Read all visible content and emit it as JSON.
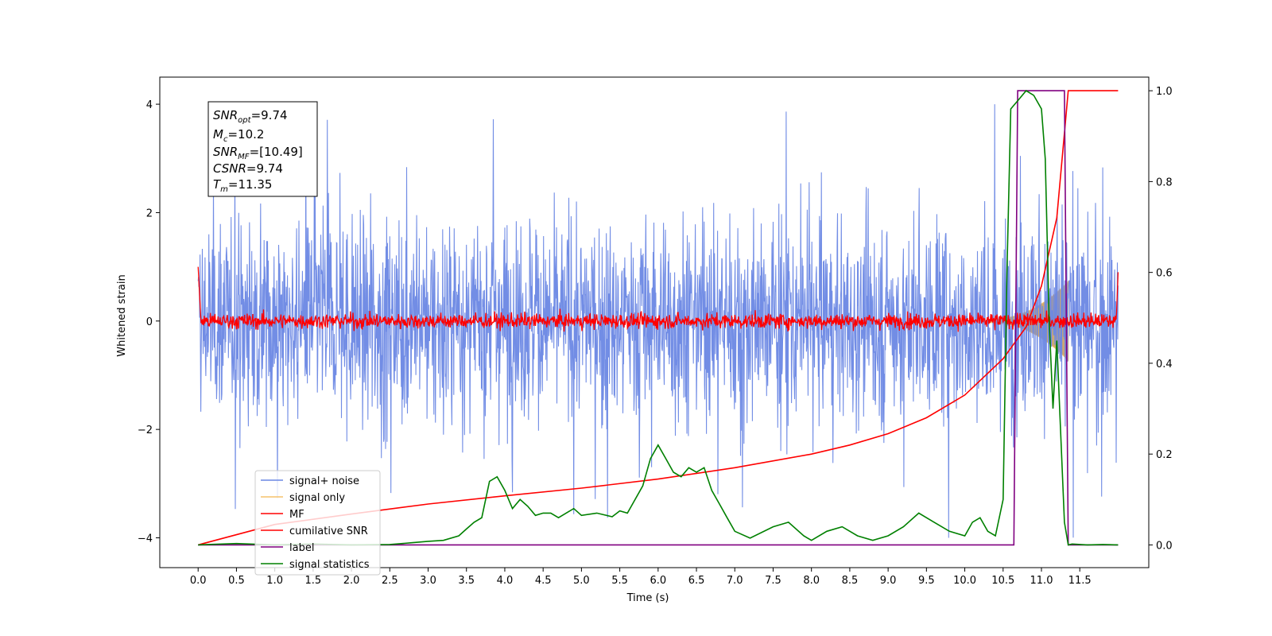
{
  "chart_data": {
    "type": "line",
    "xlabel": "Time (s)",
    "ylabel": "Whitened strain",
    "xlim": [
      -0.5,
      12.4
    ],
    "ylim": [
      -4.55,
      4.5
    ],
    "y2lim": [
      -0.05,
      1.03
    ],
    "xticks": [
      "0.0",
      "0.5",
      "1.0",
      "1.5",
      "2.0",
      "2.5",
      "3.0",
      "3.5",
      "4.0",
      "4.5",
      "5.0",
      "5.5",
      "6.0",
      "6.5",
      "7.0",
      "7.5",
      "8.0",
      "8.5",
      "9.0",
      "9.5",
      "10.0",
      "10.5",
      "11.0",
      "11.5"
    ],
    "yticks": [
      "4",
      "2",
      "0",
      "−2",
      "−4"
    ],
    "y2ticks": [
      "1.0",
      "0.8",
      "0.6",
      "0.4",
      "0.2",
      "0.0"
    ],
    "legend_placement": "lower-left",
    "grid": false,
    "infobox": {
      "snr_opt": {
        "base": "SNR",
        "sub": "opt",
        "value": "=9.74"
      },
      "mc": {
        "base": "M",
        "sub": "c",
        "value": "=10.2"
      },
      "snr_mf": {
        "base": "SNR",
        "sub": "MF",
        "value": "=[10.49]"
      },
      "csnr": {
        "base": "CSNR",
        "sub": "",
        "value": "=9.74"
      },
      "tm": {
        "base": "T",
        "sub": "m",
        "value": "=11.35"
      }
    },
    "series": [
      {
        "name": "signal+ noise",
        "color": "#6a87e4",
        "axis": "left",
        "kind": "noise",
        "amplitude_peak": 4.0,
        "t_start": 0.0,
        "t_end": 12.0
      },
      {
        "name": "signal only",
        "color": "#f5c26b",
        "axis": "left",
        "kind": "chirp",
        "t_start": 10.3,
        "t_end": 11.35,
        "amplitude_end": 0.7
      },
      {
        "name": "MF",
        "color": "#ff0000",
        "axis": "left",
        "kind": "noise",
        "amplitude_peak": 0.35,
        "t_start": 0.0,
        "t_end": 12.0
      },
      {
        "name": "cumilative SNR",
        "color": "#ff0000",
        "axis": "right",
        "x": [
          0.0,
          1.0,
          2.0,
          3.0,
          4.0,
          5.0,
          6.0,
          7.0,
          8.0,
          8.5,
          9.0,
          9.5,
          10.0,
          10.5,
          10.8,
          11.0,
          11.2,
          11.35,
          11.5,
          12.0
        ],
        "y": [
          0.0,
          0.045,
          0.068,
          0.09,
          0.108,
          0.125,
          0.145,
          0.17,
          0.2,
          0.22,
          0.245,
          0.28,
          0.33,
          0.41,
          0.48,
          0.57,
          0.72,
          1.0,
          1.0,
          1.0
        ]
      },
      {
        "name": "label",
        "color": "#800080",
        "axis": "right",
        "x": [
          0.0,
          10.64,
          10.69,
          11.3,
          11.35,
          12.0
        ],
        "y": [
          0.0,
          0.0,
          1.0,
          1.0,
          0.0,
          0.0
        ]
      },
      {
        "name": "signal statistics",
        "color": "#008000",
        "axis": "right",
        "x": [
          0.0,
          0.5,
          1.0,
          1.5,
          2.0,
          2.5,
          2.8,
          3.0,
          3.2,
          3.4,
          3.5,
          3.6,
          3.7,
          3.8,
          3.9,
          4.0,
          4.1,
          4.2,
          4.3,
          4.4,
          4.5,
          4.6,
          4.7,
          4.8,
          4.9,
          5.0,
          5.2,
          5.4,
          5.5,
          5.6,
          5.8,
          5.9,
          6.0,
          6.1,
          6.2,
          6.3,
          6.4,
          6.5,
          6.6,
          6.7,
          6.8,
          6.9,
          7.0,
          7.2,
          7.5,
          7.7,
          7.9,
          8.0,
          8.2,
          8.4,
          8.6,
          8.8,
          9.0,
          9.2,
          9.4,
          9.6,
          9.8,
          10.0,
          10.1,
          10.2,
          10.3,
          10.4,
          10.5,
          10.55,
          10.6,
          10.7,
          10.8,
          10.9,
          11.0,
          11.05,
          11.1,
          11.15,
          11.2,
          11.25,
          11.3,
          11.35,
          11.4,
          11.6,
          11.8,
          12.0
        ],
        "y": [
          0.0,
          0.003,
          0.0,
          0.002,
          0.0,
          0.001,
          0.005,
          0.008,
          0.01,
          0.02,
          0.035,
          0.05,
          0.06,
          0.14,
          0.15,
          0.12,
          0.08,
          0.1,
          0.085,
          0.065,
          0.07,
          0.07,
          0.06,
          0.07,
          0.08,
          0.065,
          0.07,
          0.062,
          0.075,
          0.07,
          0.13,
          0.19,
          0.22,
          0.19,
          0.16,
          0.15,
          0.17,
          0.16,
          0.17,
          0.12,
          0.09,
          0.06,
          0.03,
          0.015,
          0.04,
          0.05,
          0.02,
          0.01,
          0.03,
          0.04,
          0.02,
          0.01,
          0.02,
          0.04,
          0.07,
          0.05,
          0.03,
          0.02,
          0.05,
          0.06,
          0.03,
          0.02,
          0.1,
          0.6,
          0.96,
          0.98,
          1.0,
          0.99,
          0.96,
          0.85,
          0.5,
          0.3,
          0.45,
          0.25,
          0.05,
          0.0,
          0.002,
          0.0,
          0.001,
          0.0
        ]
      }
    ]
  }
}
